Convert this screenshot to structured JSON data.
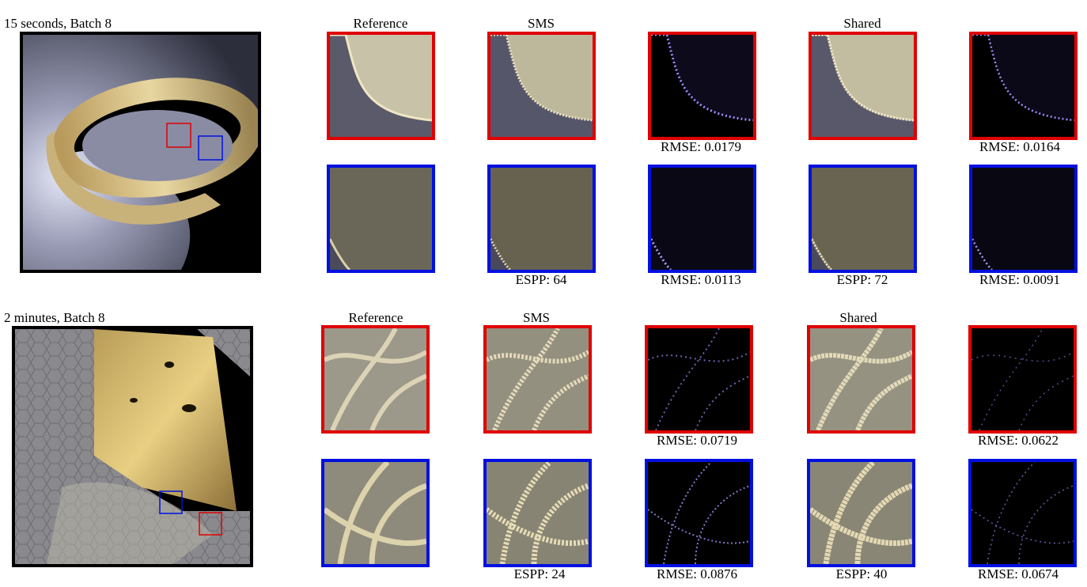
{
  "rows": [
    {
      "title": "15 seconds, Batch 8",
      "headers": {
        "reference": "Reference",
        "sms": "SMS",
        "shared": "Shared"
      },
      "crops": {
        "red": {
          "sms_error": "RMSE: 0.0179",
          "shared_error": "RMSE: 0.0164"
        },
        "blue": {
          "sms_espp": "ESPP: 64",
          "sms_error": "RMSE: 0.0113",
          "shared_espp": "ESPP: 72",
          "shared_error": "RMSE: 0.0091"
        }
      }
    },
    {
      "title": "2 minutes, Batch 8",
      "headers": {
        "reference": "Reference",
        "sms": "SMS",
        "shared": "Shared"
      },
      "crops": {
        "red": {
          "sms_error": "RMSE: 0.0719",
          "shared_error": "RMSE: 0.0622"
        },
        "blue": {
          "sms_espp": "ESPP: 24",
          "sms_error": "RMSE: 0.0876",
          "shared_espp": "ESPP: 40",
          "shared_error": "RMSE: 0.0674"
        }
      }
    }
  ],
  "colors": {
    "red_box": "#e00000",
    "blue_box": "#0010e0",
    "frame": "#000000"
  }
}
